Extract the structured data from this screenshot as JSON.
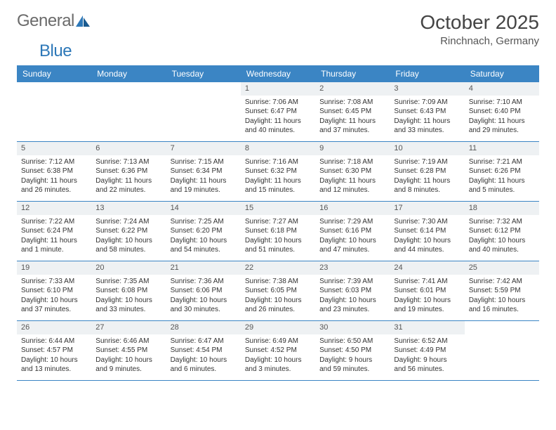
{
  "brand": {
    "text1": "General",
    "text2": "Blue"
  },
  "title": "October 2025",
  "location": "Rinchnach, Germany",
  "colors": {
    "header_bg": "#3b85c4",
    "header_text": "#ffffff",
    "daynum_bg": "#eef1f3",
    "border": "#3b85c4",
    "brand_gray": "#6b6b6b",
    "brand_blue": "#2d78b8"
  },
  "weekdays": [
    "Sunday",
    "Monday",
    "Tuesday",
    "Wednesday",
    "Thursday",
    "Friday",
    "Saturday"
  ],
  "weeks": [
    [
      {
        "n": "",
        "sr": "",
        "ss": "",
        "dl": ""
      },
      {
        "n": "",
        "sr": "",
        "ss": "",
        "dl": ""
      },
      {
        "n": "",
        "sr": "",
        "ss": "",
        "dl": ""
      },
      {
        "n": "1",
        "sr": "Sunrise: 7:06 AM",
        "ss": "Sunset: 6:47 PM",
        "dl": "Daylight: 11 hours and 40 minutes."
      },
      {
        "n": "2",
        "sr": "Sunrise: 7:08 AM",
        "ss": "Sunset: 6:45 PM",
        "dl": "Daylight: 11 hours and 37 minutes."
      },
      {
        "n": "3",
        "sr": "Sunrise: 7:09 AM",
        "ss": "Sunset: 6:43 PM",
        "dl": "Daylight: 11 hours and 33 minutes."
      },
      {
        "n": "4",
        "sr": "Sunrise: 7:10 AM",
        "ss": "Sunset: 6:40 PM",
        "dl": "Daylight: 11 hours and 29 minutes."
      }
    ],
    [
      {
        "n": "5",
        "sr": "Sunrise: 7:12 AM",
        "ss": "Sunset: 6:38 PM",
        "dl": "Daylight: 11 hours and 26 minutes."
      },
      {
        "n": "6",
        "sr": "Sunrise: 7:13 AM",
        "ss": "Sunset: 6:36 PM",
        "dl": "Daylight: 11 hours and 22 minutes."
      },
      {
        "n": "7",
        "sr": "Sunrise: 7:15 AM",
        "ss": "Sunset: 6:34 PM",
        "dl": "Daylight: 11 hours and 19 minutes."
      },
      {
        "n": "8",
        "sr": "Sunrise: 7:16 AM",
        "ss": "Sunset: 6:32 PM",
        "dl": "Daylight: 11 hours and 15 minutes."
      },
      {
        "n": "9",
        "sr": "Sunrise: 7:18 AM",
        "ss": "Sunset: 6:30 PM",
        "dl": "Daylight: 11 hours and 12 minutes."
      },
      {
        "n": "10",
        "sr": "Sunrise: 7:19 AM",
        "ss": "Sunset: 6:28 PM",
        "dl": "Daylight: 11 hours and 8 minutes."
      },
      {
        "n": "11",
        "sr": "Sunrise: 7:21 AM",
        "ss": "Sunset: 6:26 PM",
        "dl": "Daylight: 11 hours and 5 minutes."
      }
    ],
    [
      {
        "n": "12",
        "sr": "Sunrise: 7:22 AM",
        "ss": "Sunset: 6:24 PM",
        "dl": "Daylight: 11 hours and 1 minute."
      },
      {
        "n": "13",
        "sr": "Sunrise: 7:24 AM",
        "ss": "Sunset: 6:22 PM",
        "dl": "Daylight: 10 hours and 58 minutes."
      },
      {
        "n": "14",
        "sr": "Sunrise: 7:25 AM",
        "ss": "Sunset: 6:20 PM",
        "dl": "Daylight: 10 hours and 54 minutes."
      },
      {
        "n": "15",
        "sr": "Sunrise: 7:27 AM",
        "ss": "Sunset: 6:18 PM",
        "dl": "Daylight: 10 hours and 51 minutes."
      },
      {
        "n": "16",
        "sr": "Sunrise: 7:29 AM",
        "ss": "Sunset: 6:16 PM",
        "dl": "Daylight: 10 hours and 47 minutes."
      },
      {
        "n": "17",
        "sr": "Sunrise: 7:30 AM",
        "ss": "Sunset: 6:14 PM",
        "dl": "Daylight: 10 hours and 44 minutes."
      },
      {
        "n": "18",
        "sr": "Sunrise: 7:32 AM",
        "ss": "Sunset: 6:12 PM",
        "dl": "Daylight: 10 hours and 40 minutes."
      }
    ],
    [
      {
        "n": "19",
        "sr": "Sunrise: 7:33 AM",
        "ss": "Sunset: 6:10 PM",
        "dl": "Daylight: 10 hours and 37 minutes."
      },
      {
        "n": "20",
        "sr": "Sunrise: 7:35 AM",
        "ss": "Sunset: 6:08 PM",
        "dl": "Daylight: 10 hours and 33 minutes."
      },
      {
        "n": "21",
        "sr": "Sunrise: 7:36 AM",
        "ss": "Sunset: 6:06 PM",
        "dl": "Daylight: 10 hours and 30 minutes."
      },
      {
        "n": "22",
        "sr": "Sunrise: 7:38 AM",
        "ss": "Sunset: 6:05 PM",
        "dl": "Daylight: 10 hours and 26 minutes."
      },
      {
        "n": "23",
        "sr": "Sunrise: 7:39 AM",
        "ss": "Sunset: 6:03 PM",
        "dl": "Daylight: 10 hours and 23 minutes."
      },
      {
        "n": "24",
        "sr": "Sunrise: 7:41 AM",
        "ss": "Sunset: 6:01 PM",
        "dl": "Daylight: 10 hours and 19 minutes."
      },
      {
        "n": "25",
        "sr": "Sunrise: 7:42 AM",
        "ss": "Sunset: 5:59 PM",
        "dl": "Daylight: 10 hours and 16 minutes."
      }
    ],
    [
      {
        "n": "26",
        "sr": "Sunrise: 6:44 AM",
        "ss": "Sunset: 4:57 PM",
        "dl": "Daylight: 10 hours and 13 minutes."
      },
      {
        "n": "27",
        "sr": "Sunrise: 6:46 AM",
        "ss": "Sunset: 4:55 PM",
        "dl": "Daylight: 10 hours and 9 minutes."
      },
      {
        "n": "28",
        "sr": "Sunrise: 6:47 AM",
        "ss": "Sunset: 4:54 PM",
        "dl": "Daylight: 10 hours and 6 minutes."
      },
      {
        "n": "29",
        "sr": "Sunrise: 6:49 AM",
        "ss": "Sunset: 4:52 PM",
        "dl": "Daylight: 10 hours and 3 minutes."
      },
      {
        "n": "30",
        "sr": "Sunrise: 6:50 AM",
        "ss": "Sunset: 4:50 PM",
        "dl": "Daylight: 9 hours and 59 minutes."
      },
      {
        "n": "31",
        "sr": "Sunrise: 6:52 AM",
        "ss": "Sunset: 4:49 PM",
        "dl": "Daylight: 9 hours and 56 minutes."
      },
      {
        "n": "",
        "sr": "",
        "ss": "",
        "dl": ""
      }
    ]
  ]
}
